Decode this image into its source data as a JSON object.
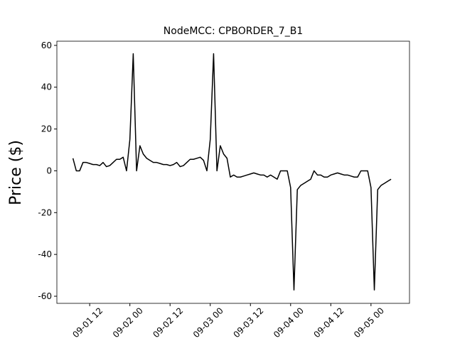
{
  "chart_data": {
    "type": "line",
    "title": "NodeMCC: CPBORDER_7_B1",
    "y_label": "Price ($)",
    "color": "#000000",
    "x": [
      7,
      8,
      9,
      10,
      11,
      12,
      13,
      14,
      15,
      16,
      17,
      18,
      19,
      20,
      21,
      22,
      23,
      24,
      25,
      26,
      27,
      28,
      29,
      30,
      31,
      32,
      33,
      34,
      35,
      36,
      37,
      38,
      39,
      40,
      41,
      42,
      43,
      44,
      45,
      46,
      47,
      48,
      49,
      50,
      51,
      52,
      53,
      54,
      55,
      56,
      57,
      58,
      59,
      60,
      61,
      62,
      63,
      64,
      65,
      66,
      67,
      68,
      69,
      70,
      71,
      72,
      73,
      74,
      75,
      76,
      77,
      78,
      79,
      80,
      81,
      82,
      83,
      84,
      85,
      86,
      87,
      88,
      89,
      90,
      91,
      92,
      93,
      94,
      95,
      96,
      97,
      98,
      99,
      100,
      101,
      102
    ],
    "values": [
      6,
      0,
      0,
      4,
      4,
      3.5,
      3,
      3,
      2.5,
      4,
      2,
      2.5,
      4,
      5.5,
      5.5,
      6.5,
      0,
      15,
      56,
      0,
      12,
      8,
      6,
      5,
      4,
      4,
      3.5,
      3,
      3,
      2.5,
      3,
      4,
      2,
      2.5,
      4,
      5.5,
      5.5,
      6,
      6.5,
      5,
      0,
      15,
      56,
      0,
      12,
      8,
      6,
      -3,
      -2,
      -3,
      -3,
      -2.5,
      -2,
      -1.5,
      -1,
      -1.5,
      -2,
      -2,
      -3,
      -2,
      -3,
      -4,
      0,
      0,
      0,
      -8,
      -57,
      -9,
      -7,
      -6,
      -5,
      -4,
      0,
      -2,
      -2,
      -3,
      -3,
      -2,
      -1.5,
      -1,
      -1.5,
      -2,
      -2,
      -2.5,
      -3,
      -3,
      0,
      0,
      0,
      -8,
      -57,
      -9,
      -7,
      -6,
      -5,
      -4
    ],
    "xlim": [
      2.2,
      107.5
    ],
    "xticks": [
      {
        "value": 12,
        "label": "09-01 12"
      },
      {
        "value": 24,
        "label": "09-02 00"
      },
      {
        "value": 36,
        "label": "09-02 12"
      },
      {
        "value": 48,
        "label": "09-03 00"
      },
      {
        "value": 60,
        "label": "09-03 12"
      },
      {
        "value": 72,
        "label": "09-04 00"
      },
      {
        "value": 84,
        "label": "09-04 12"
      },
      {
        "value": 96,
        "label": "09-05 00"
      }
    ],
    "ylim": [
      -63.4,
      62
    ],
    "yticks": [
      -60,
      -40,
      -20,
      0,
      20,
      40,
      60
    ]
  }
}
